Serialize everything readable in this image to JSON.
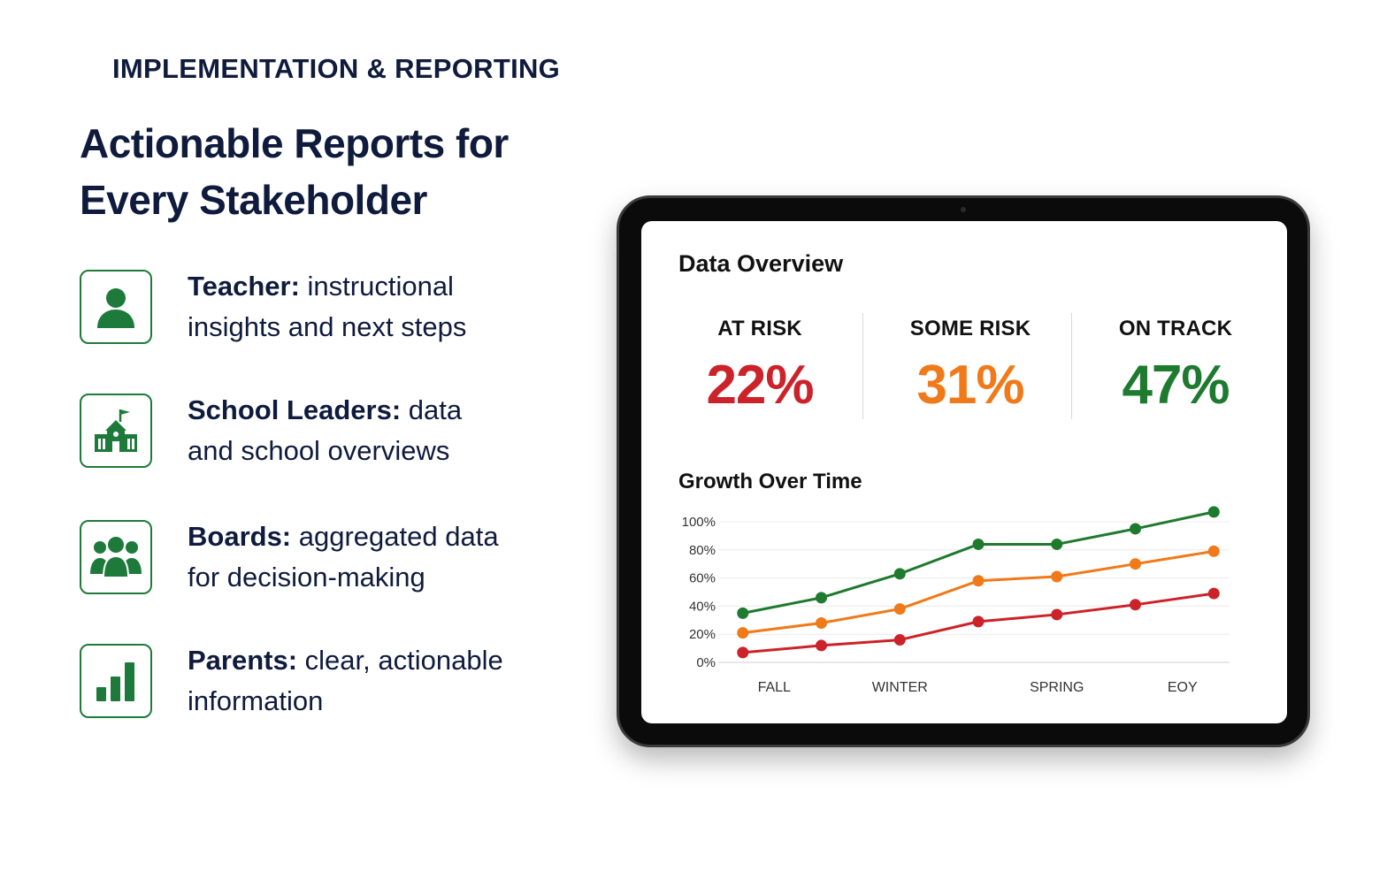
{
  "eyebrow": "IMPLEMENTATION & REPORTING",
  "headline": [
    "Actionable Reports for",
    "Every Stakeholder"
  ],
  "stakeholders": [
    {
      "icon": "person-icon",
      "role": "Teacher:",
      "desc_line1": " instructional",
      "desc_line2": "insights and next steps"
    },
    {
      "icon": "school-icon",
      "role": "School Leaders:",
      "desc_line1": " data",
      "desc_line2": "and school overviews"
    },
    {
      "icon": "group-icon",
      "role": "Boards:",
      "desc_line1": " aggregated data",
      "desc_line2": "for decision-making"
    },
    {
      "icon": "bar-chart-icon",
      "role": "Parents:",
      "desc_line1": " clear, actionable",
      "desc_line2": "information"
    }
  ],
  "colors": {
    "accent": "#1e7a3a",
    "at_risk": "#cc2229",
    "some_risk": "#f07a1a",
    "on_track": "#1e7a2e",
    "text": "#0f1b3d"
  },
  "dashboard": {
    "title": "Data Overview",
    "metrics": [
      {
        "label": "AT RISK",
        "value": "22%",
        "color": "#cc2229"
      },
      {
        "label": "SOME RISK",
        "value": "31%",
        "color": "#f07a1a"
      },
      {
        "label": "ON TRACK",
        "value": "47%",
        "color": "#1e7a2e"
      }
    ],
    "chart_title": "Growth Over Time"
  },
  "chart_data": {
    "type": "line",
    "title": "Growth Over Time",
    "x_tick_labels": [
      "FALL",
      "WINTER",
      "SPRING",
      "EOY"
    ],
    "y_tick_labels": [
      "0%",
      "20%",
      "40%",
      "60%",
      "80%",
      "100%"
    ],
    "ylim": [
      0,
      100
    ],
    "x": [
      0,
      1,
      2,
      3,
      4,
      5,
      6
    ],
    "xlim": [
      -0.2,
      6.2
    ],
    "x_tick_positions": [
      0.4,
      2.0,
      4.0,
      5.6
    ],
    "grid": true,
    "series": [
      {
        "color": "#1e7a2e",
        "values": [
          35,
          46,
          63,
          84,
          84,
          95,
          107
        ]
      },
      {
        "color": "#f07a1a",
        "values": [
          21,
          28,
          38,
          58,
          61,
          70,
          79
        ]
      },
      {
        "color": "#cc2229",
        "values": [
          7,
          12,
          16,
          29,
          34,
          41,
          49
        ]
      }
    ]
  }
}
